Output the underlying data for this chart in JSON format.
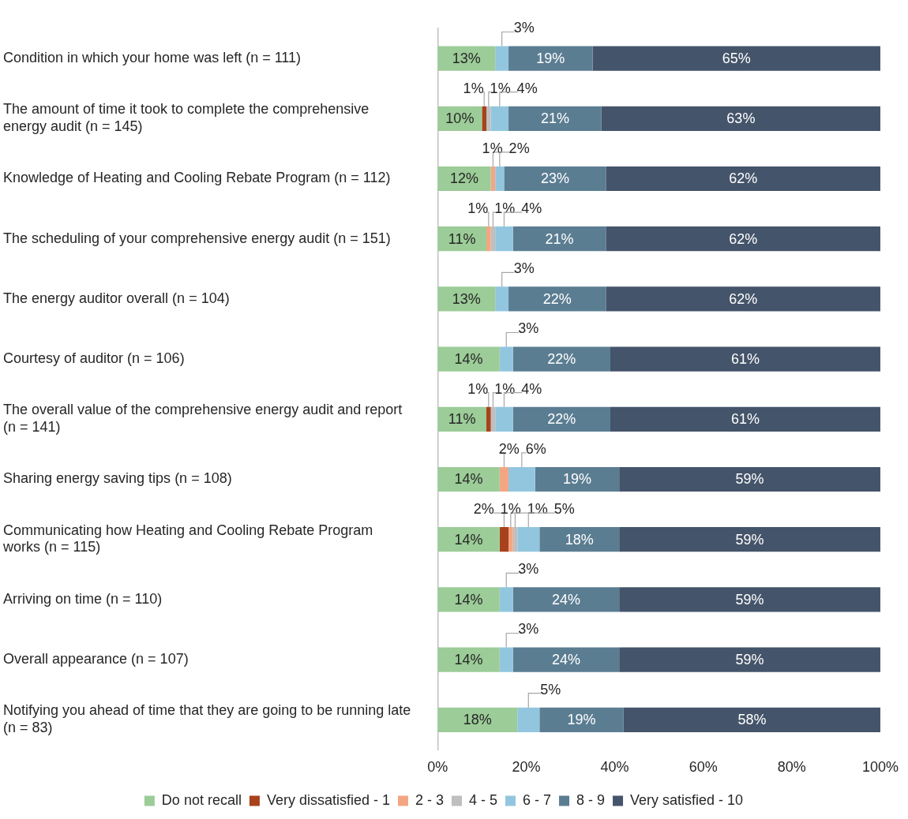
{
  "chart_data": {
    "type": "bar",
    "orientation": "horizontal",
    "stacked": true,
    "legend": "bottom",
    "grid": false,
    "categories": [
      "Condition in which your home was left (n = 111)",
      "The amount of time it took to complete the comprehensive energy audit (n = 145)",
      "Knowledge of Heating and Cooling Rebate Program (n = 112)",
      "The scheduling of your comprehensive energy audit (n = 151)",
      "The energy auditor overall (n = 104)",
      "Courtesy of auditor (n = 106)",
      "The overall value of the comprehensive energy audit and report (n = 141)",
      "Sharing energy saving tips (n = 108)",
      "Communicating how Heating and Cooling Rebate Program works (n = 115)",
      "Arriving on time (n = 110)",
      "Overall appearance (n = 107)",
      "Notifying you ahead of time that they are going to be running late (n = 83)"
    ],
    "xlim": [
      0,
      100
    ],
    "xticks": [
      {
        "value": 0,
        "label": "0%"
      },
      {
        "value": 20,
        "label": "20%"
      },
      {
        "value": 40,
        "label": "40%"
      },
      {
        "value": 60,
        "label": "60%"
      },
      {
        "value": 80,
        "label": "80%"
      },
      {
        "value": 100,
        "label": "100%"
      }
    ],
    "series": [
      {
        "name": "Do not recall",
        "color": "#9ccc98",
        "values": [
          13,
          10,
          12,
          11,
          13,
          14,
          11,
          14,
          14,
          14,
          14,
          18
        ],
        "value_labels": [
          "13%",
          "10%",
          "12%",
          "11%",
          "13%",
          "14%",
          "11%",
          "14%",
          "14%",
          "14%",
          "14%",
          "18%"
        ]
      },
      {
        "name": "Very dissatisfied - 1",
        "color": "#a8421c",
        "values": [
          null,
          1,
          null,
          null,
          null,
          null,
          1,
          null,
          2,
          null,
          null,
          null
        ],
        "value_labels": [
          null,
          "1%",
          null,
          null,
          null,
          null,
          "1%",
          null,
          "2%",
          null,
          null,
          null
        ]
      },
      {
        "name": "2 - 3",
        "color": "#f4a683",
        "values": [
          null,
          null,
          1,
          1,
          null,
          null,
          null,
          2,
          1,
          null,
          null,
          null
        ],
        "value_labels": [
          null,
          null,
          "1%",
          "1%",
          null,
          null,
          null,
          "2%",
          "1%",
          null,
          null,
          null
        ]
      },
      {
        "name": "4 - 5",
        "color": "#bfbfbf",
        "values": [
          null,
          1,
          null,
          1,
          null,
          null,
          1,
          null,
          1,
          null,
          null,
          null
        ],
        "value_labels": [
          null,
          "1%",
          null,
          "1%",
          null,
          null,
          "1%",
          null,
          "1%",
          null,
          null,
          null
        ]
      },
      {
        "name": "6 - 7",
        "color": "#92c6df",
        "values": [
          3,
          4,
          2,
          4,
          3,
          3,
          4,
          6,
          5,
          3,
          3,
          5
        ],
        "value_labels": [
          "3%",
          "4%",
          "2%",
          "4%",
          "3%",
          "3%",
          "4%",
          "6%",
          "5%",
          "3%",
          "3%",
          "5%"
        ]
      },
      {
        "name": "8 - 9",
        "color": "#5b7d92",
        "values": [
          19,
          21,
          23,
          21,
          22,
          22,
          22,
          19,
          18,
          24,
          24,
          19
        ],
        "value_labels": [
          "19%",
          "21%",
          "23%",
          "21%",
          "22%",
          "22%",
          "22%",
          "19%",
          "18%",
          "24%",
          "24%",
          "19%"
        ]
      },
      {
        "name": "Very satisfied - 10",
        "color": "#44546a",
        "values": [
          65,
          63,
          62,
          62,
          62,
          61,
          61,
          59,
          59,
          59,
          59,
          58
        ],
        "value_labels": [
          "65%",
          "63%",
          "62%",
          "62%",
          "62%",
          "61%",
          "61%",
          "59%",
          "59%",
          "59%",
          "59%",
          "58%"
        ]
      }
    ]
  }
}
